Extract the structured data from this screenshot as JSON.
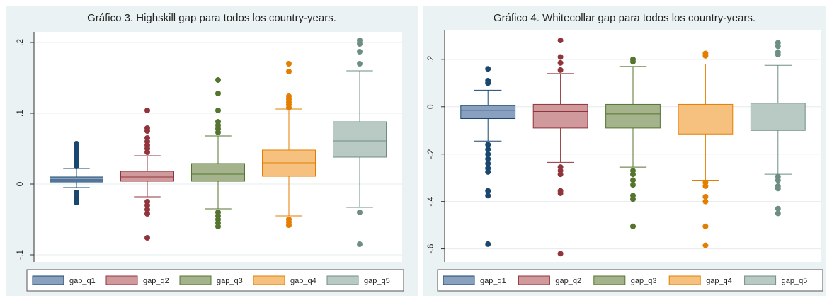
{
  "chart_data": [
    {
      "type": "box",
      "title": "Gráfico 3. Highskill gap para todos los country-years.",
      "ylim": [
        -0.11,
        0.215
      ],
      "yticks": [
        {
          "value": -0.1,
          "label": "-.1"
        },
        0,
        {
          "value": 0.1,
          "label": ".1"
        },
        {
          "value": 0.2,
          "label": ".2"
        }
      ],
      "grid": true,
      "series": [
        {
          "name": "gap_q1",
          "color": "#1a476f",
          "fill": "#8aa0bf",
          "whisker_low": -0.005,
          "q1": 0.003,
          "median": 0.006,
          "q3": 0.01,
          "whisker_high": 0.022,
          "outliers": [
            0.057,
            0.052,
            0.048,
            0.044,
            0.04,
            0.036,
            0.032,
            0.028,
            0.025,
            -0.012,
            -0.018,
            -0.022,
            -0.026
          ]
        },
        {
          "name": "gap_q2",
          "color": "#90353b",
          "fill": "#d09a9d",
          "whisker_low": -0.018,
          "q1": 0.004,
          "median": 0.01,
          "q3": 0.018,
          "whisker_high": 0.04,
          "outliers": [
            0.104,
            0.079,
            0.075,
            0.065,
            0.06,
            0.055,
            0.05,
            0.045,
            -0.025,
            -0.03,
            -0.036,
            -0.042,
            -0.076
          ]
        },
        {
          "name": "gap_q3",
          "color": "#55752f",
          "fill": "#a4b38c",
          "whisker_low": -0.035,
          "q1": 0.004,
          "median": 0.014,
          "q3": 0.029,
          "whisker_high": 0.068,
          "outliers": [
            0.147,
            0.128,
            0.104,
            0.088,
            0.083,
            0.078,
            0.073,
            -0.04,
            -0.045,
            -0.05,
            -0.055,
            -0.06
          ]
        },
        {
          "name": "gap_q4",
          "color": "#e37e00",
          "fill": "#f6c17f",
          "whisker_low": -0.045,
          "q1": 0.011,
          "median": 0.03,
          "q3": 0.048,
          "whisker_high": 0.106,
          "outliers": [
            0.17,
            0.159,
            0.124,
            0.12,
            0.116,
            0.112,
            0.108,
            -0.05,
            -0.054,
            -0.058
          ]
        },
        {
          "name": "gap_q5",
          "color": "#6e8e84",
          "fill": "#b9c9c3",
          "whisker_low": -0.033,
          "q1": 0.038,
          "median": 0.061,
          "q3": 0.088,
          "whisker_high": 0.16,
          "outliers": [
            0.203,
            0.198,
            0.187,
            0.17,
            -0.04,
            -0.085
          ]
        }
      ]
    },
    {
      "type": "box",
      "title": "Gráfico 4. Whitecollar gap para todos los country-years.",
      "ylim": [
        -0.655,
        0.325
      ],
      "yticks": [
        {
          "value": -0.6,
          "label": "-.6"
        },
        {
          "value": -0.4,
          "label": "-.4"
        },
        {
          "value": -0.2,
          "label": "-.2"
        },
        0,
        {
          "value": 0.2,
          "label": ".2"
        }
      ],
      "grid": true,
      "series": [
        {
          "name": "gap_q1",
          "color": "#1a476f",
          "fill": "#8aa0bf",
          "whisker_low": -0.145,
          "q1": -0.05,
          "median": -0.015,
          "q3": 0.005,
          "whisker_high": 0.07,
          "outliers": [
            0.16,
            0.11,
            0.1,
            -0.16,
            -0.18,
            -0.2,
            -0.22,
            -0.24,
            -0.26,
            -0.275,
            -0.355,
            -0.375,
            -0.58
          ]
        },
        {
          "name": "gap_q2",
          "color": "#90353b",
          "fill": "#d09a9d",
          "whisker_low": -0.235,
          "q1": -0.09,
          "median": -0.02,
          "q3": 0.01,
          "whisker_high": 0.14,
          "outliers": [
            0.28,
            0.21,
            0.185,
            0.155,
            -0.255,
            -0.27,
            -0.285,
            -0.355,
            -0.365,
            -0.62
          ]
        },
        {
          "name": "gap_q3",
          "color": "#55752f",
          "fill": "#a4b38c",
          "whisker_low": -0.255,
          "q1": -0.09,
          "median": -0.03,
          "q3": 0.01,
          "whisker_high": 0.17,
          "outliers": [
            0.2,
            0.19,
            -0.27,
            -0.285,
            -0.31,
            -0.33,
            -0.375,
            -0.39,
            -0.505
          ]
        },
        {
          "name": "gap_q4",
          "color": "#e37e00",
          "fill": "#f6c17f",
          "whisker_low": -0.31,
          "q1": -0.115,
          "median": -0.035,
          "q3": 0.01,
          "whisker_high": 0.18,
          "outliers": [
            0.225,
            0.215,
            -0.32,
            -0.335,
            -0.38,
            -0.4,
            -0.505,
            -0.585
          ]
        },
        {
          "name": "gap_q5",
          "color": "#6e8e84",
          "fill": "#b9c9c3",
          "whisker_low": -0.285,
          "q1": -0.1,
          "median": -0.035,
          "q3": 0.015,
          "whisker_high": 0.175,
          "outliers": [
            0.27,
            0.255,
            0.23,
            0.22,
            -0.295,
            -0.31,
            -0.335,
            -0.345,
            -0.43,
            -0.45
          ]
        }
      ]
    }
  ]
}
